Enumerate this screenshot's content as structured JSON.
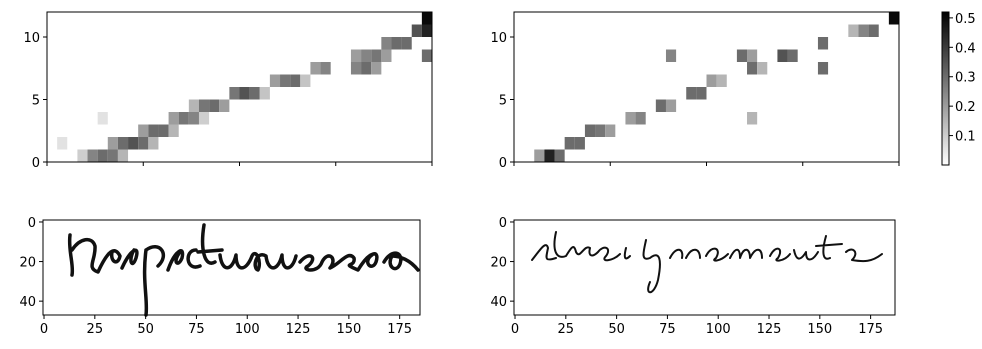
{
  "chart_data": [
    {
      "type": "heatmap",
      "xlim": [
        0,
        190
      ],
      "ylim": [
        0,
        12
      ],
      "yticks": [
        0,
        5,
        10
      ],
      "cells": [
        [
          15,
          0,
          0.1
        ],
        [
          20,
          0,
          0.25
        ],
        [
          25,
          0,
          0.3
        ],
        [
          30,
          0,
          0.28
        ],
        [
          35,
          0,
          0.15
        ],
        [
          30,
          1,
          0.2
        ],
        [
          35,
          1,
          0.3
        ],
        [
          40,
          1,
          0.35
        ],
        [
          45,
          1,
          0.3
        ],
        [
          50,
          1,
          0.15
        ],
        [
          5,
          1,
          0.06
        ],
        [
          45,
          2,
          0.2
        ],
        [
          50,
          2,
          0.3
        ],
        [
          55,
          2,
          0.3
        ],
        [
          60,
          2,
          0.15
        ],
        [
          25,
          3,
          0.06
        ],
        [
          60,
          3,
          0.2
        ],
        [
          65,
          3,
          0.28
        ],
        [
          70,
          3,
          0.25
        ],
        [
          75,
          3,
          0.1
        ],
        [
          70,
          4,
          0.15
        ],
        [
          75,
          4,
          0.28
        ],
        [
          80,
          4,
          0.3
        ],
        [
          85,
          4,
          0.2
        ],
        [
          90,
          5,
          0.28
        ],
        [
          95,
          5,
          0.35
        ],
        [
          100,
          5,
          0.3
        ],
        [
          105,
          5,
          0.12
        ],
        [
          110,
          6,
          0.2
        ],
        [
          115,
          6,
          0.28
        ],
        [
          120,
          6,
          0.3
        ],
        [
          125,
          6,
          0.12
        ],
        [
          130,
          7,
          0.2
        ],
        [
          135,
          7,
          0.25
        ],
        [
          150,
          7,
          0.25
        ],
        [
          155,
          7,
          0.3
        ],
        [
          160,
          7,
          0.2
        ],
        [
          150,
          8,
          0.2
        ],
        [
          155,
          8,
          0.25
        ],
        [
          160,
          8,
          0.28
        ],
        [
          165,
          8,
          0.2
        ],
        [
          165,
          9,
          0.25
        ],
        [
          170,
          9,
          0.3
        ],
        [
          175,
          9,
          0.3
        ],
        [
          180,
          10,
          0.35
        ],
        [
          185,
          10,
          0.45
        ],
        [
          185,
          11,
          0.5
        ],
        [
          185,
          8,
          0.3
        ]
      ]
    },
    {
      "type": "heatmap",
      "xlim": [
        0,
        190
      ],
      "ylim": [
        0,
        12
      ],
      "yticks": [
        0,
        5,
        10
      ],
      "cells": [
        [
          10,
          0,
          0.2
        ],
        [
          15,
          0,
          0.45
        ],
        [
          20,
          0,
          0.3
        ],
        [
          25,
          1,
          0.3
        ],
        [
          30,
          1,
          0.3
        ],
        [
          35,
          2,
          0.3
        ],
        [
          40,
          2,
          0.28
        ],
        [
          45,
          2,
          0.2
        ],
        [
          55,
          3,
          0.2
        ],
        [
          60,
          3,
          0.25
        ],
        [
          115,
          3,
          0.15
        ],
        [
          70,
          4,
          0.3
        ],
        [
          75,
          4,
          0.2
        ],
        [
          85,
          5,
          0.3
        ],
        [
          90,
          5,
          0.3
        ],
        [
          95,
          6,
          0.2
        ],
        [
          100,
          6,
          0.15
        ],
        [
          115,
          7,
          0.3
        ],
        [
          120,
          7,
          0.15
        ],
        [
          150,
          7,
          0.3
        ],
        [
          75,
          8,
          0.25
        ],
        [
          110,
          8,
          0.3
        ],
        [
          115,
          8,
          0.2
        ],
        [
          130,
          8,
          0.35
        ],
        [
          135,
          8,
          0.3
        ],
        [
          150,
          9,
          0.3
        ],
        [
          170,
          10,
          0.25
        ],
        [
          175,
          10,
          0.3
        ],
        [
          165,
          10,
          0.15
        ],
        [
          185,
          11,
          0.5
        ]
      ]
    },
    {
      "type": "colorbar",
      "ylim": [
        0,
        0.52
      ],
      "yticks": [
        0.1,
        0.2,
        0.3,
        0.4,
        0.5
      ]
    },
    {
      "type": "image",
      "xlim": [
        -0.5,
        185
      ],
      "ylim": [
        47,
        -1
      ],
      "xticks": [
        0,
        25,
        50,
        75,
        100,
        125,
        150,
        175
      ],
      "yticks": [
        0,
        20,
        40
      ]
    },
    {
      "type": "image",
      "xlim": [
        -0.5,
        187
      ],
      "ylim": [
        47,
        -1
      ],
      "xticks": [
        0,
        25,
        50,
        75,
        100,
        125,
        150,
        175
      ],
      "yticks": [
        0,
        20,
        40
      ]
    }
  ]
}
